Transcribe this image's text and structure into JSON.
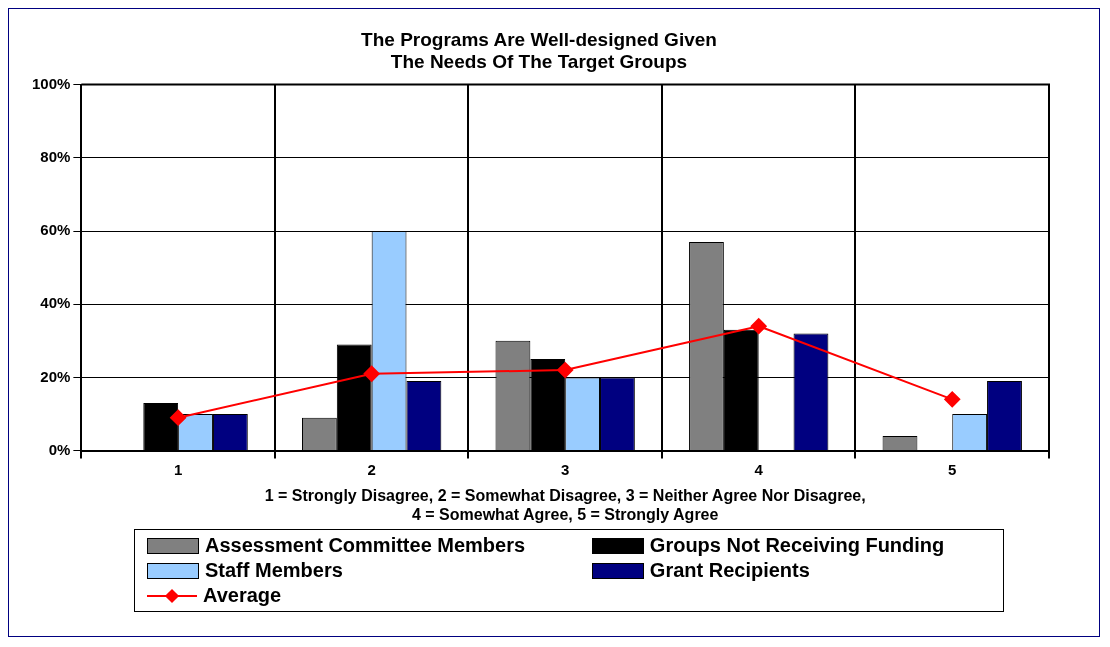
{
  "chart_data": {
    "type": "bar",
    "title": "The Programs Are Well-designed Given\nThe Needs Of The Target Groups",
    "xlabel": "1 = Strongly Disagree, 2 = Somewhat Disagree, 3 = Neither Agree Nor Disagree,\n4 = Somewhat Agree, 5 = Strongly Agree",
    "categories": [
      "1",
      "2",
      "3",
      "4",
      "5"
    ],
    "series": [
      {
        "name": "Assessment Committee Members",
        "color": "#808080",
        "values": [
          0,
          9,
          30,
          57,
          4
        ]
      },
      {
        "name": "Groups Not Receiving Funding",
        "color": "#000000",
        "values": [
          13,
          29,
          25,
          33,
          0
        ]
      },
      {
        "name": "Staff Members",
        "color": "#99ccff",
        "values": [
          10,
          60,
          20,
          0,
          10
        ]
      },
      {
        "name": "Grant Recipients",
        "color": "#000080",
        "values": [
          10,
          19,
          20,
          32,
          19
        ]
      },
      {
        "name": "Average",
        "type": "line",
        "color": "#ff0000",
        "marker": "diamond",
        "values": [
          9,
          21,
          22,
          34,
          14
        ]
      }
    ],
    "ylim": [
      0,
      100
    ],
    "yticks": [
      {
        "value": 0,
        "label": "0%"
      },
      {
        "value": 20,
        "label": "20%"
      },
      {
        "value": 40,
        "label": "40%"
      },
      {
        "value": 60,
        "label": "60%"
      },
      {
        "value": 80,
        "label": "80%"
      },
      {
        "value": 100,
        "label": "100%"
      }
    ],
    "grid": true,
    "legend": "bottom"
  }
}
